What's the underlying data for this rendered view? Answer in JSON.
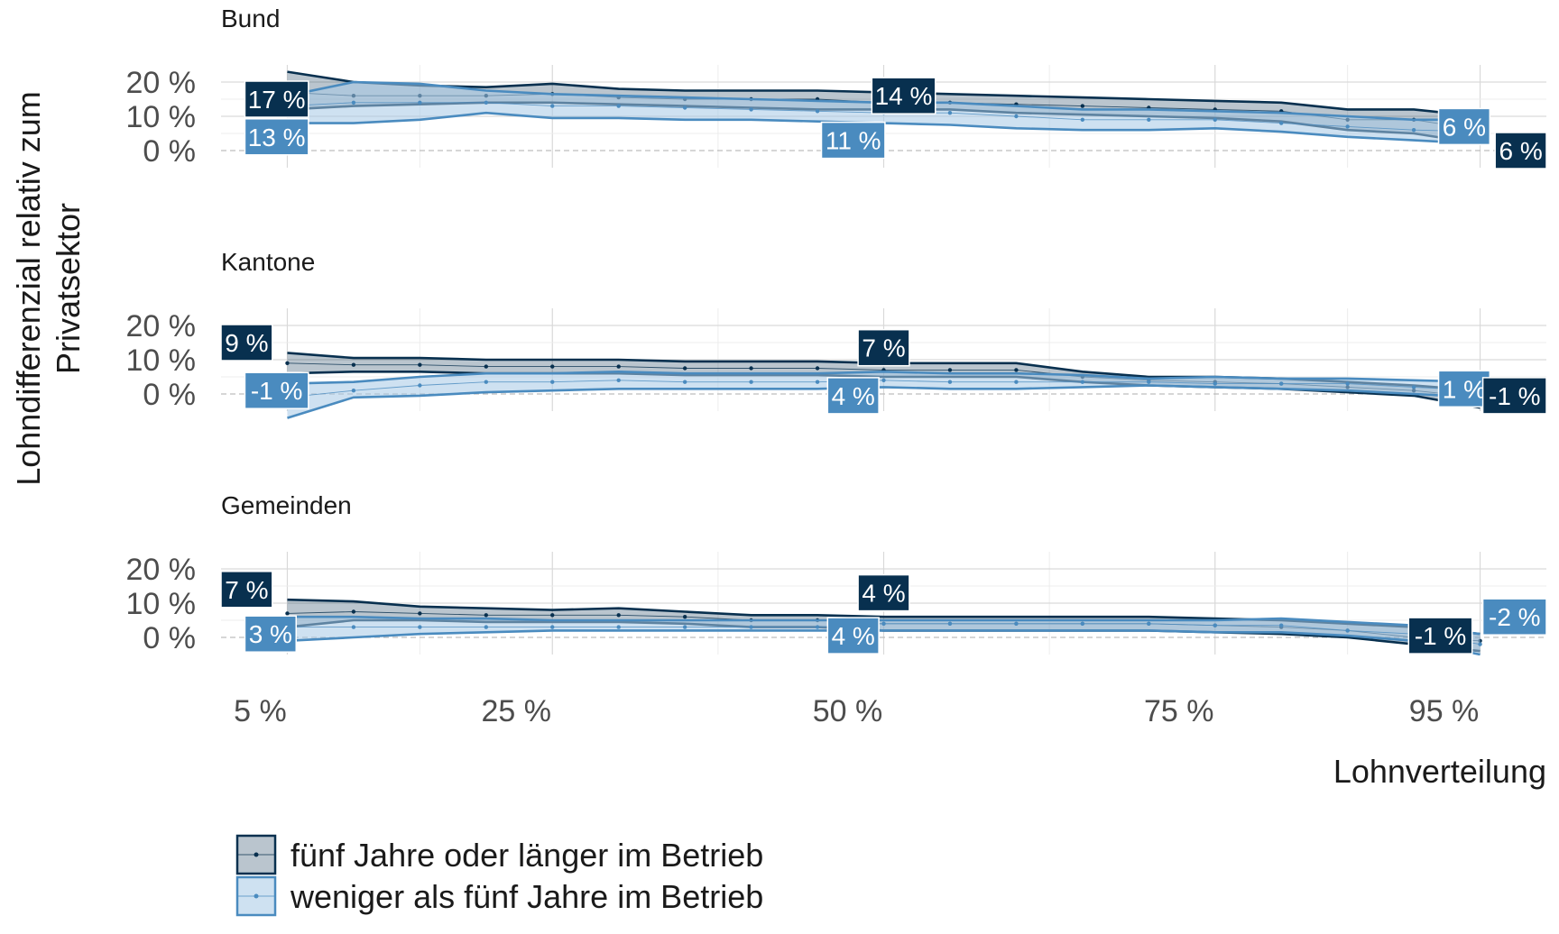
{
  "chart_data": {
    "type": "line",
    "ylabel_lines": [
      "Lohndifferenzial relativ zum",
      "Privatsektor"
    ],
    "xlabel": "Lohnverteilung",
    "x_ticks": [
      {
        "value": 5,
        "label": "5 %"
      },
      {
        "value": 25,
        "label": "25 %"
      },
      {
        "value": 50,
        "label": "50 %"
      },
      {
        "value": 75,
        "label": "75 %"
      },
      {
        "value": 95,
        "label": "95 %"
      }
    ],
    "y_ticks": [
      {
        "value": 0,
        "label": "0 %"
      },
      {
        "value": 10,
        "label": "10 %"
      },
      {
        "value": 20,
        "label": "20 %"
      }
    ],
    "xlim": [
      0,
      100
    ],
    "ylim": [
      -5,
      25
    ],
    "grid": true,
    "legend_position": "bottom-left",
    "colors": {
      "long": "#08304f",
      "short": "#4a8bbf",
      "long_fill": "#08304f",
      "short_fill": "#a6c8e6"
    },
    "legend": [
      {
        "key": "long",
        "label": "fünf Jahre oder länger im Betrieb"
      },
      {
        "key": "short",
        "label": "weniger als fünf Jahre im Betrieb"
      }
    ],
    "panels": [
      {
        "name": "Bund",
        "x": [
          5,
          10,
          15,
          20,
          25,
          30,
          35,
          40,
          45,
          50,
          55,
          60,
          65,
          70,
          75,
          80,
          85,
          90,
          95
        ],
        "series": [
          {
            "key": "long",
            "values": [
              17,
              16,
              16,
              16,
              16.5,
              15.5,
              15,
              15,
              15,
              14,
              14,
              13.5,
              13,
              12.5,
              12,
              11.5,
              9,
              9,
              6
            ],
            "lower": [
              12,
              13,
              13.5,
              14,
              14,
              13.5,
              13,
              12.5,
              12,
              12,
              12,
              11,
              10.5,
              10,
              9.5,
              8.5,
              6,
              5,
              2
            ],
            "upper": [
              23,
              20,
              19,
              18.5,
              19.5,
              18,
              17.5,
              17.5,
              17.5,
              17,
              16.5,
              16,
              15.5,
              15,
              14.5,
              14,
              12,
              12,
              10
            ]
          },
          {
            "key": "short",
            "values": [
              13,
              14,
              14,
              14,
              13,
              13,
              12.5,
              12,
              11.5,
              11,
              11,
              10,
              9,
              9,
              9,
              8,
              7,
              6,
              5.5
            ],
            "lower": [
              8,
              8,
              9,
              11,
              9.5,
              9.5,
              9,
              9,
              8.5,
              8,
              7.5,
              6.5,
              6,
              6,
              6.5,
              5.5,
              4,
              3,
              2
            ],
            "upper": [
              16,
              20,
              19.5,
              17.5,
              16.5,
              16,
              15.5,
              15,
              14.5,
              14,
              14,
              13,
              12,
              12,
              11.5,
              11,
              10,
              9,
              9
            ]
          }
        ],
        "labels": [
          {
            "key": "long",
            "x": 1.8,
            "y": 15,
            "anchor": "start",
            "text": "17 %"
          },
          {
            "key": "short",
            "x": 1.8,
            "y": 4,
            "anchor": "start",
            "text": "13 %"
          },
          {
            "key": "long",
            "x": 51.5,
            "y": 16,
            "anchor": "middle",
            "text": "14 %"
          },
          {
            "key": "short",
            "x": 47.7,
            "y": 3,
            "anchor": "middle",
            "text": "11 %"
          },
          {
            "key": "short",
            "x": 93.8,
            "y": 7,
            "anchor": "middle",
            "text": "6 %"
          },
          {
            "key": "long",
            "x": 100,
            "y": 0,
            "anchor": "end",
            "text": "6 %"
          }
        ]
      },
      {
        "name": "Kantone",
        "x": [
          5,
          10,
          15,
          20,
          25,
          30,
          35,
          40,
          45,
          50,
          55,
          60,
          65,
          70,
          75,
          80,
          85,
          90,
          95
        ],
        "series": [
          {
            "key": "long",
            "values": [
              9,
              8.5,
              8.5,
              8,
              8,
              8,
              7.5,
              7.5,
              7.5,
              7,
              7,
              7,
              5,
              4,
              3.5,
              3,
              2,
              1,
              -1
            ],
            "lower": [
              6,
              6.5,
              6.5,
              6,
              6,
              6,
              5.5,
              5.5,
              5.5,
              5,
              5,
              5,
              3.5,
              2.5,
              2,
              1.5,
              0.5,
              -0.5,
              -4
            ],
            "upper": [
              12,
              10.5,
              10.5,
              10,
              10,
              10,
              9.5,
              9.5,
              9.5,
              9,
              9,
              9,
              6.5,
              5,
              5,
              4.5,
              3.5,
              2.5,
              1
            ]
          },
          {
            "key": "short",
            "values": [
              -1,
              1,
              2.5,
              3.5,
              3.5,
              4,
              3.5,
              3.5,
              3.5,
              4,
              3.5,
              3.5,
              3.5,
              3.5,
              3,
              3,
              3,
              2,
              1
            ],
            "lower": [
              -7,
              -1,
              -0.5,
              0.5,
              1,
              1.5,
              1.5,
              1.5,
              1.5,
              2,
              1.5,
              1.5,
              2,
              2.5,
              2,
              1.5,
              1,
              0,
              -1
            ],
            "upper": [
              3,
              3.5,
              5,
              6,
              6,
              6.5,
              6,
              6,
              6,
              6.5,
              6,
              6,
              5.5,
              4.5,
              5,
              4.5,
              4.5,
              4,
              3.5
            ]
          }
        ],
        "labels": [
          {
            "key": "long",
            "x": 0,
            "y": 15,
            "anchor": "start",
            "text": "9 %"
          },
          {
            "key": "short",
            "x": 1.8,
            "y": 1,
            "anchor": "start",
            "text": "-1 %"
          },
          {
            "key": "long",
            "x": 50,
            "y": 13.5,
            "anchor": "middle",
            "text": "7 %"
          },
          {
            "key": "short",
            "x": 47.7,
            "y": -0.5,
            "anchor": "middle",
            "text": "4 %"
          },
          {
            "key": "short",
            "x": 93.8,
            "y": 1.5,
            "anchor": "middle",
            "text": "1 %"
          },
          {
            "key": "long",
            "x": 100,
            "y": -0.5,
            "anchor": "end",
            "text": "-1 %"
          }
        ]
      },
      {
        "name": "Gemeinden",
        "x": [
          5,
          10,
          15,
          20,
          25,
          30,
          35,
          40,
          45,
          50,
          55,
          60,
          65,
          70,
          75,
          80,
          85,
          90,
          95
        ],
        "series": [
          {
            "key": "long",
            "values": [
              7,
              7.5,
              7,
              6.5,
              6.5,
              6.5,
              6,
              5,
              5,
              4,
              4,
              4,
              4,
              4,
              3.5,
              3,
              2,
              0,
              -1
            ],
            "lower": [
              3,
              5,
              5,
              4.5,
              4.5,
              4.5,
              4,
              3,
              3,
              2,
              2,
              2,
              2,
              2,
              1.5,
              1,
              0,
              -2,
              -4
            ],
            "upper": [
              11,
              10.5,
              9,
              8.5,
              8,
              8.5,
              7.5,
              6.5,
              6.5,
              6,
              6,
              6,
              6,
              6,
              5.5,
              5,
              4,
              3,
              1
            ]
          },
          {
            "key": "short",
            "values": [
              3,
              3,
              3,
              3,
              3,
              3,
              3,
              3,
              3,
              4,
              4,
              4,
              4,
              4,
              3.5,
              3.5,
              2,
              1,
              -2
            ],
            "lower": [
              -1,
              0,
              1,
              1.5,
              2,
              2,
              2,
              2,
              2,
              2,
              2,
              2,
              2,
              2,
              1.5,
              1.5,
              0.5,
              -1,
              -5
            ],
            "upper": [
              6,
              6,
              5.5,
              5.5,
              5,
              5,
              5,
              5,
              5,
              5,
              5,
              5,
              5,
              5,
              5,
              5.5,
              4.5,
              3.5,
              1
            ]
          }
        ],
        "labels": [
          {
            "key": "long",
            "x": 0,
            "y": 14,
            "anchor": "start",
            "text": "7 %"
          },
          {
            "key": "short",
            "x": 1.8,
            "y": 1,
            "anchor": "start",
            "text": "3 %"
          },
          {
            "key": "long",
            "x": 50,
            "y": 13,
            "anchor": "middle",
            "text": "4 %"
          },
          {
            "key": "short",
            "x": 47.7,
            "y": 0.5,
            "anchor": "middle",
            "text": "4 %"
          },
          {
            "key": "long",
            "x": 92,
            "y": 0.5,
            "anchor": "middle",
            "text": "-1 %"
          },
          {
            "key": "short",
            "x": 100,
            "y": 6,
            "anchor": "end",
            "text": "-2 %"
          }
        ]
      }
    ]
  }
}
